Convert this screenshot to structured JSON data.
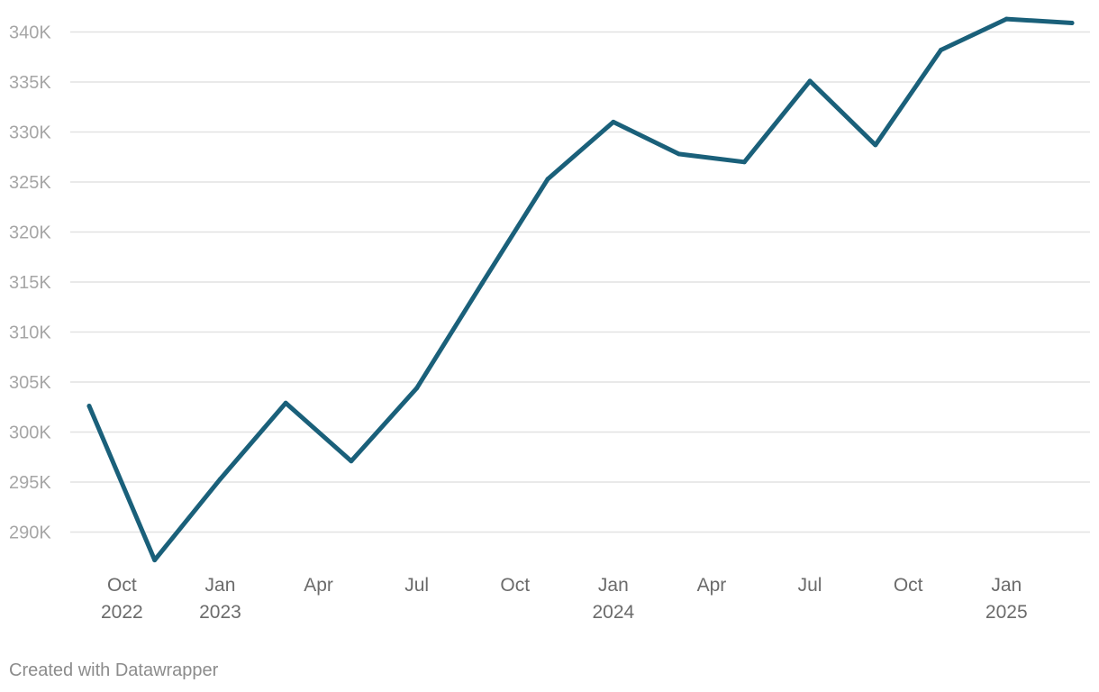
{
  "chart_data": {
    "type": "line",
    "x": [
      "2022-09",
      "2022-11",
      "2023-01",
      "2023-03",
      "2023-05",
      "2023-07",
      "2023-09",
      "2023-11",
      "2024-01",
      "2024-03",
      "2024-05",
      "2024-07",
      "2024-09",
      "2024-11",
      "2025-01",
      "2025-03"
    ],
    "series": [
      {
        "values": [
          302600,
          287200,
          295300,
          302900,
          297100,
          304400,
          314900,
          325300,
          331000,
          327800,
          327000,
          335100,
          328700,
          338200,
          341300,
          340900
        ]
      }
    ],
    "ylim": [
      287000,
      342000
    ],
    "yticks": [
      290000,
      295000,
      300000,
      305000,
      310000,
      315000,
      320000,
      325000,
      330000,
      335000,
      340000
    ],
    "ytick_labels": [
      "290K",
      "295K",
      "300K",
      "305K",
      "310K",
      "315K",
      "320K",
      "325K",
      "330K",
      "335K",
      "340K"
    ],
    "xticks": [
      {
        "date": "2022-10",
        "label": "Oct",
        "year": "2022"
      },
      {
        "date": "2023-01",
        "label": "Jan",
        "year": "2023"
      },
      {
        "date": "2023-04",
        "label": "Apr",
        "year": ""
      },
      {
        "date": "2023-07",
        "label": "Jul",
        "year": ""
      },
      {
        "date": "2023-10",
        "label": "Oct",
        "year": ""
      },
      {
        "date": "2024-01",
        "label": "Jan",
        "year": "2024"
      },
      {
        "date": "2024-04",
        "label": "Apr",
        "year": ""
      },
      {
        "date": "2024-07",
        "label": "Jul",
        "year": ""
      },
      {
        "date": "2024-10",
        "label": "Oct",
        "year": ""
      },
      {
        "date": "2025-01",
        "label": "Jan",
        "year": "2025"
      }
    ],
    "grid": true,
    "line_color": "#1a607a",
    "grid_color": "#e2e2e2",
    "tick_label_color": "#a6a6a6",
    "x_label_color": "#6b6b6b"
  },
  "footer": {
    "credit": "Created with Datawrapper"
  }
}
